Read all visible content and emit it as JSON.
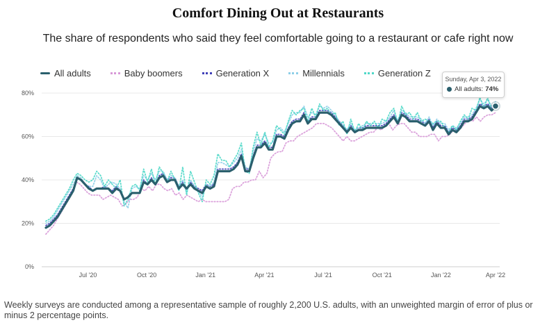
{
  "chart_data": {
    "type": "line",
    "title": "Comfort Dining Out at Restaurants",
    "subtitle": "The share of respondents who said they feel comfortable going to a restaurant or cafe right now",
    "xlabel": "",
    "ylabel": "",
    "ylim": [
      0,
      80
    ],
    "yticks": [
      0,
      20,
      40,
      60,
      80
    ],
    "ytick_labels": [
      "0%",
      "20%",
      "40%",
      "60%",
      "80%"
    ],
    "xlim": [
      0,
      107
    ],
    "xticks": [
      10,
      24,
      38,
      52,
      66,
      80,
      94,
      107
    ],
    "xtick_labels": [
      "Jul '20",
      "Oct '20",
      "Jan '21",
      "Apr '21",
      "Jul '21",
      "Oct '21",
      "Jan '22",
      "Apr '22"
    ],
    "grid": true,
    "legend_position": "top-left",
    "series": [
      {
        "name": "All adults",
        "color": "#2a5f6d",
        "style": "solid",
        "values": [
          18,
          19,
          21,
          23,
          26,
          29,
          32,
          35,
          41,
          40,
          38,
          36,
          35,
          36,
          36,
          36,
          36,
          34,
          36,
          35,
          31,
          32,
          34,
          34,
          34,
          39,
          38,
          40,
          38,
          41,
          42,
          39,
          40,
          40,
          36,
          38,
          36,
          38,
          36,
          35,
          34,
          37,
          36,
          37,
          44,
          44,
          44,
          44,
          45,
          47,
          51,
          44,
          44,
          50,
          55,
          55,
          57,
          54,
          54,
          60,
          60,
          59,
          63,
          66,
          67,
          67,
          70,
          66,
          68,
          68,
          71,
          71,
          71,
          70,
          68,
          66,
          64,
          62,
          64,
          62,
          63,
          63,
          64,
          64,
          64,
          64,
          64,
          65,
          67,
          69,
          66,
          70,
          69,
          67,
          67,
          67,
          66,
          65,
          67,
          63,
          66,
          64,
          64,
          61,
          63,
          62,
          64,
          67,
          67,
          68,
          71,
          74,
          73,
          74,
          72,
          74
        ]
      },
      {
        "name": "Baby boomers",
        "color": "#d89ad8",
        "style": "dotted",
        "values": [
          15,
          17,
          19,
          22,
          25,
          28,
          31,
          34,
          39,
          38,
          36,
          34,
          33,
          33,
          33,
          31,
          32,
          33,
          32,
          31,
          28,
          29,
          31,
          31,
          32,
          36,
          35,
          37,
          35,
          38,
          38,
          36,
          35,
          36,
          33,
          34,
          31,
          33,
          32,
          31,
          30,
          31,
          30,
          30,
          30,
          30,
          30,
          30,
          31,
          36,
          37,
          37,
          39,
          39,
          40,
          40,
          44,
          41,
          43,
          50,
          52,
          53,
          53,
          57,
          58,
          58,
          60,
          61,
          62,
          63,
          64,
          66,
          66,
          66,
          65,
          64,
          62,
          60,
          58,
          60,
          58,
          58,
          59,
          60,
          61,
          62,
          62,
          64,
          63,
          65,
          66,
          63,
          65,
          66,
          66,
          64,
          62,
          62,
          60,
          60,
          60,
          61,
          61,
          58,
          60,
          60,
          61,
          63,
          63,
          64,
          66,
          68,
          67,
          69,
          67,
          69,
          70,
          70,
          71
        ]
      },
      {
        "name": "Generation X",
        "color": "#4040b8",
        "style": "dotted",
        "values": [
          19,
          20,
          22,
          24,
          27,
          30,
          33,
          36,
          41,
          40,
          38,
          37,
          35,
          36,
          36,
          37,
          36,
          35,
          37,
          35,
          31,
          32,
          34,
          34,
          34,
          40,
          38,
          41,
          38,
          42,
          43,
          40,
          41,
          41,
          37,
          39,
          36,
          39,
          37,
          36,
          35,
          38,
          37,
          38,
          45,
          45,
          45,
          45,
          46,
          48,
          52,
          45,
          45,
          51,
          56,
          56,
          58,
          55,
          55,
          61,
          61,
          60,
          64,
          67,
          68,
          68,
          71,
          67,
          69,
          69,
          72,
          72,
          72,
          71,
          69,
          67,
          65,
          63,
          65,
          63,
          64,
          64,
          65,
          65,
          65,
          65,
          65,
          66,
          68,
          70,
          67,
          71,
          70,
          68,
          68,
          68,
          67,
          66,
          68,
          64,
          67,
          65,
          65,
          62,
          64,
          63,
          65,
          68,
          68,
          69,
          72,
          75,
          74,
          75,
          73,
          75
        ]
      },
      {
        "name": "Millennials",
        "color": "#8ecfe8",
        "style": "dotted",
        "values": [
          20,
          21,
          23,
          26,
          29,
          32,
          35,
          38,
          42,
          41,
          38,
          37,
          37,
          42,
          40,
          36,
          38,
          39,
          38,
          36,
          30,
          27,
          36,
          37,
          36,
          42,
          40,
          43,
          40,
          44,
          44,
          40,
          42,
          41,
          37,
          40,
          34,
          40,
          37,
          35,
          32,
          38,
          37,
          39,
          48,
          48,
          47,
          46,
          48,
          50,
          54,
          46,
          45,
          53,
          59,
          58,
          61,
          57,
          57,
          63,
          64,
          62,
          66,
          70,
          71,
          71,
          74,
          69,
          71,
          70,
          74,
          73,
          74,
          72,
          70,
          67,
          65,
          63,
          66,
          63,
          64,
          65,
          66,
          66,
          66,
          66,
          66,
          67,
          69,
          72,
          67,
          72,
          71,
          69,
          69,
          69,
          68,
          66,
          69,
          65,
          68,
          66,
          66,
          63,
          65,
          64,
          66,
          69,
          69,
          70,
          73,
          77,
          75,
          77,
          74,
          76
        ]
      },
      {
        "name": "Generation Z",
        "color": "#4fd8c8",
        "style": "dotted",
        "values": [
          21,
          22,
          24,
          27,
          30,
          33,
          36,
          40,
          43,
          42,
          40,
          39,
          40,
          44,
          42,
          37,
          40,
          38,
          36,
          40,
          28,
          31,
          37,
          38,
          35,
          45,
          39,
          45,
          38,
          46,
          43,
          39,
          44,
          40,
          35,
          46,
          33,
          44,
          39,
          34,
          30,
          40,
          38,
          42,
          52,
          49,
          49,
          46,
          49,
          52,
          57,
          44,
          43,
          55,
          62,
          56,
          62,
          55,
          58,
          65,
          63,
          61,
          67,
          72,
          70,
          72,
          73,
          67,
          73,
          69,
          75,
          72,
          73,
          70,
          71,
          65,
          67,
          61,
          68,
          62,
          66,
          63,
          67,
          65,
          67,
          64,
          68,
          67,
          71,
          73,
          66,
          74,
          70,
          71,
          68,
          71,
          67,
          68,
          67,
          66,
          67,
          67,
          64,
          62,
          65,
          63,
          67,
          70,
          68,
          73,
          72,
          78,
          73,
          78,
          72,
          75
        ]
      }
    ],
    "tooltip": {
      "date": "Sunday, Apr 3, 2022",
      "label": "All adults:",
      "value": "74%"
    },
    "footnote": "Weekly surveys are conducted among a representative sample of roughly 2,200 U.S. adults, with an unweighted margin of error of plus or minus 2 percentage points."
  }
}
